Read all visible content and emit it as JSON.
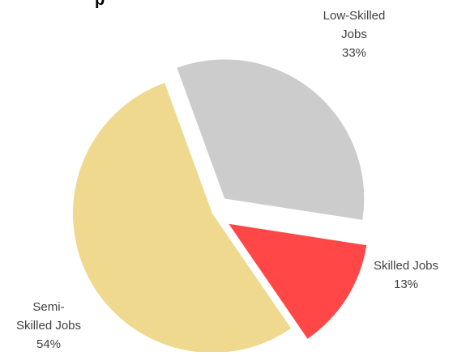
{
  "chart_data": {
    "type": "pie",
    "title": "",
    "title_visible_fragment": "p",
    "slices": [
      {
        "label_lines": [
          "Low-Skilled",
          "Jobs"
        ],
        "label": "Low-Skilled Jobs",
        "value": 33,
        "percent_text": "33%",
        "color": "#CCCCCC",
        "exploded": true
      },
      {
        "label_lines": [
          "Skilled Jobs"
        ],
        "label": "Skilled Jobs",
        "value": 13,
        "percent_text": "13%",
        "color": "#FF4747",
        "exploded": true
      },
      {
        "label_lines": [
          "Semi-",
          "Skilled Jobs"
        ],
        "label": "Semi-Skilled Jobs",
        "value": 54,
        "percent_text": "54%",
        "color": "#EFD98E",
        "exploded": false
      }
    ],
    "start_angle_deg": -20,
    "direction": "clockwise",
    "legend": "none"
  }
}
